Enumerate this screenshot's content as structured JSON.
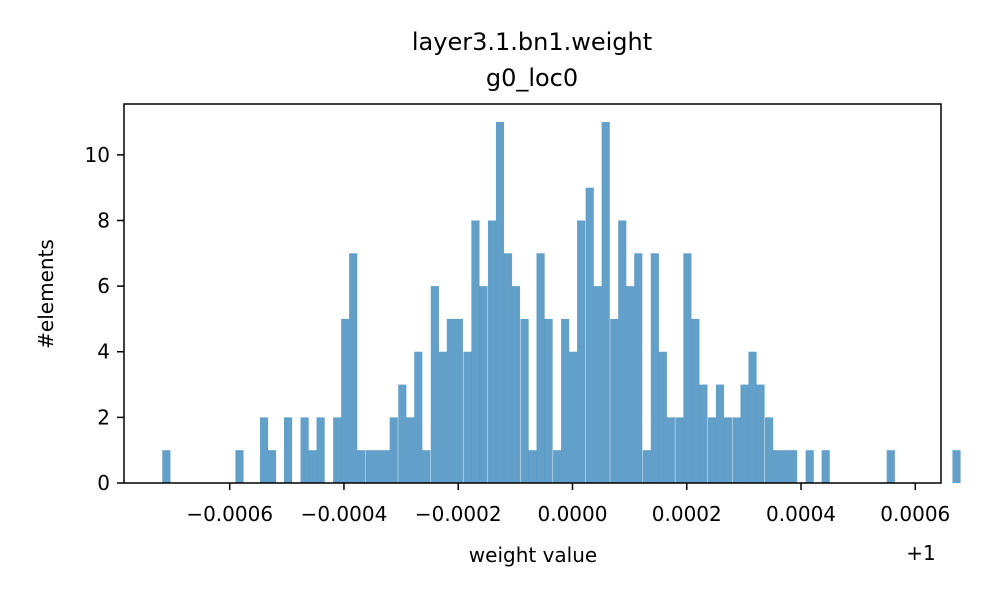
{
  "chart_data": {
    "type": "bar",
    "title": "layer3.1.bn1.weight",
    "subtitle": "g0_loc0",
    "xlabel": "weight value",
    "ylabel": "#elements",
    "x_offset_label": "+1",
    "bar_color": "#1f77b4",
    "bar_opacity": 0.7,
    "xlim": [
      -0.000785,
      0.000645
    ],
    "ylim": [
      0,
      11.55
    ],
    "bin_width": 1.424e-05,
    "xticks": [
      -0.0006,
      -0.0004,
      -0.0002,
      0.0,
      0.0002,
      0.0004,
      0.0006
    ],
    "xtick_labels": [
      "−0.0006",
      "−0.0004",
      "−0.0002",
      "0.0000",
      "0.0002",
      "0.0004",
      "0.0006"
    ],
    "yticks": [
      0,
      2,
      4,
      6,
      8,
      10
    ],
    "ytick_labels": [
      "0",
      "2",
      "4",
      "6",
      "8",
      "10"
    ],
    "bins": [
      {
        "x": -0.000718,
        "y": 1
      },
      {
        "x": -0.00059,
        "y": 1
      },
      {
        "x": -0.000547,
        "y": 2
      },
      {
        "x": -0.000533,
        "y": 1
      },
      {
        "x": -0.000505,
        "y": 2
      },
      {
        "x": -0.000476,
        "y": 2
      },
      {
        "x": -0.000462,
        "y": 1
      },
      {
        "x": -0.000448,
        "y": 2
      },
      {
        "x": -0.000419,
        "y": 2
      },
      {
        "x": -0.000405,
        "y": 5
      },
      {
        "x": -0.000391,
        "y": 7
      },
      {
        "x": -0.000377,
        "y": 1
      },
      {
        "x": -0.000362,
        "y": 1
      },
      {
        "x": -0.000348,
        "y": 1
      },
      {
        "x": -0.000334,
        "y": 1
      },
      {
        "x": -0.00032,
        "y": 2
      },
      {
        "x": -0.000305,
        "y": 3
      },
      {
        "x": -0.000291,
        "y": 2
      },
      {
        "x": -0.000277,
        "y": 4
      },
      {
        "x": -0.000263,
        "y": 1
      },
      {
        "x": -0.000248,
        "y": 6
      },
      {
        "x": -0.000234,
        "y": 4
      },
      {
        "x": -0.00022,
        "y": 5
      },
      {
        "x": -0.000206,
        "y": 5
      },
      {
        "x": -0.000191,
        "y": 4
      },
      {
        "x": -0.000177,
        "y": 8
      },
      {
        "x": -0.000163,
        "y": 6
      },
      {
        "x": -0.000148,
        "y": 8
      },
      {
        "x": -0.000134,
        "y": 11
      },
      {
        "x": -0.00012,
        "y": 7
      },
      {
        "x": -0.000106,
        "y": 6
      },
      {
        "x": -9.1e-05,
        "y": 5
      },
      {
        "x": -7.7e-05,
        "y": 1
      },
      {
        "x": -6.3e-05,
        "y": 7
      },
      {
        "x": -4.9e-05,
        "y": 5
      },
      {
        "x": -3.4e-05,
        "y": 1
      },
      {
        "x": -2e-05,
        "y": 5
      },
      {
        "x": -6e-06,
        "y": 4
      },
      {
        "x": 8e-06,
        "y": 8
      },
      {
        "x": 2.3e-05,
        "y": 9
      },
      {
        "x": 3.7e-05,
        "y": 6
      },
      {
        "x": 5.1e-05,
        "y": 11
      },
      {
        "x": 6.6e-05,
        "y": 5
      },
      {
        "x": 8e-05,
        "y": 8
      },
      {
        "x": 9.4e-05,
        "y": 6
      },
      {
        "x": 0.000108,
        "y": 7
      },
      {
        "x": 0.000123,
        "y": 1
      },
      {
        "x": 0.000137,
        "y": 7
      },
      {
        "x": 0.000151,
        "y": 4
      },
      {
        "x": 0.000165,
        "y": 2
      },
      {
        "x": 0.00018,
        "y": 2
      },
      {
        "x": 0.000194,
        "y": 7
      },
      {
        "x": 0.000208,
        "y": 5
      },
      {
        "x": 0.000222,
        "y": 3
      },
      {
        "x": 0.000237,
        "y": 2
      },
      {
        "x": 0.000251,
        "y": 3
      },
      {
        "x": 0.000265,
        "y": 2
      },
      {
        "x": 0.00028,
        "y": 2
      },
      {
        "x": 0.000294,
        "y": 3
      },
      {
        "x": 0.000308,
        "y": 4
      },
      {
        "x": 0.000322,
        "y": 3
      },
      {
        "x": 0.000337,
        "y": 2
      },
      {
        "x": 0.000351,
        "y": 1
      },
      {
        "x": 0.000365,
        "y": 1
      },
      {
        "x": 0.000379,
        "y": 1
      },
      {
        "x": 0.000408,
        "y": 1
      },
      {
        "x": 0.000436,
        "y": 1
      },
      {
        "x": 0.00055,
        "y": 1
      },
      {
        "x": 0.000665,
        "y": 1
      }
    ]
  }
}
